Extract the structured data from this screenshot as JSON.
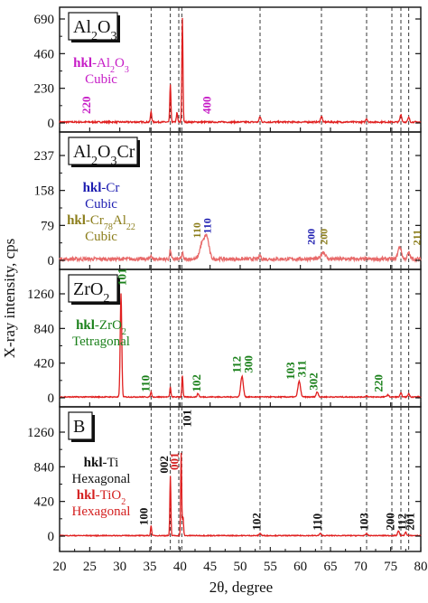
{
  "chart_data": {
    "type": "line",
    "x_axis": {
      "label": "2θ, degree",
      "range": [
        20,
        80
      ],
      "ticks": [
        20,
        25,
        30,
        35,
        40,
        45,
        50,
        55,
        60,
        65,
        70,
        75,
        80
      ]
    },
    "y_axis_label": "X-ray intensity, cps",
    "reference_lines_x": [
      35.2,
      38.4,
      39.8,
      40.3,
      53.3,
      63.5,
      71.0,
      75.2,
      76.7,
      78.0
    ],
    "panels": [
      {
        "id": "al2o3",
        "sample": [
          {
            "t": "Al"
          },
          {
            "t": "2",
            "sub": true
          },
          {
            "t": "O"
          },
          {
            "t": "3",
            "sub": true
          }
        ],
        "legends": [
          {
            "color": "#c61cc6",
            "parts": [
              {
                "t": "hkl",
                "bold": true
              },
              {
                "t": "-Al"
              },
              {
                "t": "2",
                "sub": true
              },
              {
                "t": "O"
              },
              {
                "t": "3",
                "sub": true
              }
            ]
          },
          {
            "color": "#c61cc6",
            "parts": [
              {
                "t": "Cubic"
              }
            ]
          }
        ],
        "ylim": [
          0,
          710
        ],
        "yticks": [
          0,
          230,
          460,
          690
        ],
        "peaks": [
          {
            "x": 35.2,
            "h": 70,
            "w": 0.15
          },
          {
            "x": 38.4,
            "h": 250,
            "w": 0.13
          },
          {
            "x": 39.5,
            "h": 60,
            "w": 0.15
          },
          {
            "x": 40.4,
            "h": 690,
            "w": 0.13
          },
          {
            "x": 53.3,
            "h": 35,
            "w": 0.2
          },
          {
            "x": 63.5,
            "h": 40,
            "w": 0.2
          },
          {
            "x": 71.0,
            "h": 22,
            "w": 0.2
          },
          {
            "x": 76.7,
            "h": 50,
            "w": 0.2
          },
          {
            "x": 78.0,
            "h": 30,
            "w": 0.2
          }
        ],
        "base": 6,
        "noise": 5,
        "hkl": [
          {
            "text": "220",
            "x": 24.5,
            "y": 60,
            "color": "#c61cc6"
          },
          {
            "text": "400",
            "x": 44.5,
            "y": 60,
            "color": "#c61cc6"
          }
        ]
      },
      {
        "id": "al2o3cr",
        "sample": [
          {
            "t": "Al"
          },
          {
            "t": "2",
            "sub": true
          },
          {
            "t": "O"
          },
          {
            "t": "3",
            "sub": true
          },
          {
            "t": "Cr"
          }
        ],
        "legends": [
          {
            "color": "#1c1cb0",
            "parts": [
              {
                "t": "hkl",
                "bold": true
              },
              {
                "t": "-Cr"
              }
            ]
          },
          {
            "color": "#1c1cb0",
            "parts": [
              {
                "t": "Cubic"
              }
            ]
          },
          {
            "color": "#8b7d1a",
            "parts": [
              {
                "t": "hkl",
                "bold": true
              },
              {
                "t": "-Cr"
              },
              {
                "t": "78",
                "sub": true
              },
              {
                "t": "Al"
              },
              {
                "t": "22",
                "sub": true
              }
            ]
          },
          {
            "color": "#8b7d1a",
            "parts": [
              {
                "t": "Cubic"
              }
            ]
          }
        ],
        "ylim": [
          0,
          255
        ],
        "yticks": [
          0,
          79,
          158,
          237
        ],
        "peaks": [
          {
            "x": 35.2,
            "h": 10,
            "w": 0.15
          },
          {
            "x": 38.4,
            "h": 22,
            "w": 0.15
          },
          {
            "x": 40.4,
            "h": 15,
            "w": 0.15
          },
          {
            "x": 43.6,
            "h": 30,
            "w": 0.5
          },
          {
            "x": 44.4,
            "h": 52,
            "w": 0.55
          },
          {
            "x": 53.3,
            "h": 8,
            "w": 0.2
          },
          {
            "x": 63.8,
            "h": 16,
            "w": 0.5
          },
          {
            "x": 76.5,
            "h": 28,
            "w": 0.4
          },
          {
            "x": 78.0,
            "h": 14,
            "w": 0.3
          }
        ],
        "base": 3,
        "noise": 4,
        "hkl": [
          {
            "text": "110",
            "x": 42.8,
            "y": 50,
            "color": "#8b7d1a",
            "size": 12
          },
          {
            "text": "110",
            "x": 44.5,
            "y": 60,
            "color": "#1c1cb0",
            "size": 12
          },
          {
            "text": "200",
            "x": 61.8,
            "y": 35,
            "color": "#1c1cb0",
            "size": 12
          },
          {
            "text": "200",
            "x": 63.9,
            "y": 35,
            "color": "#8b7d1a",
            "size": 12
          },
          {
            "text": "211",
            "x": 79.3,
            "y": 34,
            "color": "#8b7d1a",
            "size": 12
          }
        ]
      },
      {
        "id": "zro2",
        "sample": [
          {
            "t": "ZrO"
          },
          {
            "t": "2",
            "sub": true
          }
        ],
        "legends": [
          {
            "color": "#1a801a",
            "parts": [
              {
                "t": "hkl",
                "bold": true
              },
              {
                "t": "-ZrO"
              },
              {
                "t": "2",
                "sub": true
              }
            ]
          },
          {
            "color": "#1a801a",
            "parts": [
              {
                "t": "Tetragonal"
              }
            ]
          }
        ],
        "ylim": [
          0,
          1400
        ],
        "yticks": [
          0,
          420,
          840,
          1260
        ],
        "peaks": [
          {
            "x": 30.2,
            "h": 1260,
            "w": 0.18
          },
          {
            "x": 35.2,
            "h": 60,
            "w": 0.15
          },
          {
            "x": 38.4,
            "h": 120,
            "w": 0.13
          },
          {
            "x": 40.4,
            "h": 260,
            "w": 0.13
          },
          {
            "x": 43.0,
            "h": 40,
            "w": 0.2
          },
          {
            "x": 50.3,
            "h": 250,
            "w": 0.3
          },
          {
            "x": 59.8,
            "h": 190,
            "w": 0.3
          },
          {
            "x": 62.8,
            "h": 60,
            "w": 0.25
          },
          {
            "x": 71.0,
            "h": 15,
            "w": 0.2
          },
          {
            "x": 74.5,
            "h": 25,
            "w": 0.25
          },
          {
            "x": 76.7,
            "h": 45,
            "w": 0.2
          },
          {
            "x": 78.0,
            "h": 40,
            "w": 0.2
          }
        ],
        "base": 10,
        "noise": 6,
        "hkl": [
          {
            "text": "101",
            "x": 30.4,
            "y": 1380,
            "color": "#1a801a"
          },
          {
            "text": "110",
            "x": 34.3,
            "y": 70,
            "color": "#1a801a"
          },
          {
            "text": "102",
            "x": 42.8,
            "y": 70,
            "color": "#1a801a"
          },
          {
            "text": "112",
            "x": 49.5,
            "y": 300,
            "color": "#1a801a"
          },
          {
            "text": "300",
            "x": 51.4,
            "y": 300,
            "color": "#1a801a"
          },
          {
            "text": "103",
            "x": 58.4,
            "y": 220,
            "color": "#1a801a"
          },
          {
            "text": "311",
            "x": 60.3,
            "y": 250,
            "color": "#1a801a"
          },
          {
            "text": "302",
            "x": 62.2,
            "y": 90,
            "color": "#1a801a"
          },
          {
            "text": "220",
            "x": 73.0,
            "y": 70,
            "color": "#1a801a"
          }
        ]
      },
      {
        "id": "b",
        "sample": [
          {
            "t": "B"
          }
        ],
        "legends": [
          {
            "color": "#111111",
            "parts": [
              {
                "t": "hkl",
                "bold": true
              },
              {
                "t": "-Ti"
              }
            ]
          },
          {
            "color": "#111111",
            "parts": [
              {
                "t": "Hexagonal"
              }
            ]
          },
          {
            "color": "#d42020",
            "parts": [
              {
                "t": "hkl",
                "bold": true
              },
              {
                "t": "-TiO"
              },
              {
                "t": "2",
                "sub": true
              }
            ]
          },
          {
            "color": "#d42020",
            "parts": [
              {
                "t": "Hexagonal"
              }
            ]
          }
        ],
        "ylim": [
          0,
          1400
        ],
        "yticks": [
          0,
          420,
          840,
          1260
        ],
        "peaks": [
          {
            "x": 35.2,
            "h": 120,
            "w": 0.13
          },
          {
            "x": 38.4,
            "h": 720,
            "w": 0.12
          },
          {
            "x": 40.2,
            "h": 1000,
            "w": 0.12
          },
          {
            "x": 40.5,
            "h": 230,
            "w": 0.13
          },
          {
            "x": 53.3,
            "h": 30,
            "w": 0.2
          },
          {
            "x": 63.3,
            "h": 25,
            "w": 0.2
          },
          {
            "x": 71.0,
            "h": 25,
            "w": 0.2
          },
          {
            "x": 76.3,
            "h": 60,
            "w": 0.2
          },
          {
            "x": 77.5,
            "h": 40,
            "w": 0.2
          }
        ],
        "base": 6,
        "noise": 5,
        "hkl": [
          {
            "text": "100",
            "x": 34.0,
            "y": 130,
            "color": "#111111"
          },
          {
            "text": "002",
            "x": 37.4,
            "y": 760,
            "color": "#111111"
          },
          {
            "text": "001",
            "x": 39.1,
            "y": 800,
            "color": "#d42020"
          },
          {
            "text": "101",
            "x": 41.2,
            "y": 1320,
            "color": "#111111"
          },
          {
            "text": "102",
            "x": 52.8,
            "y": 70,
            "color": "#111111"
          },
          {
            "text": "110",
            "x": 62.8,
            "y": 70,
            "color": "#111111"
          },
          {
            "text": "103",
            "x": 70.6,
            "y": 70,
            "color": "#111111"
          },
          {
            "text": "200",
            "x": 75.0,
            "y": 70,
            "color": "#111111"
          },
          {
            "text": "112",
            "x": 76.9,
            "y": 70,
            "color": "#111111"
          },
          {
            "text": "201",
            "x": 78.3,
            "y": 70,
            "color": "#111111"
          }
        ]
      }
    ]
  }
}
